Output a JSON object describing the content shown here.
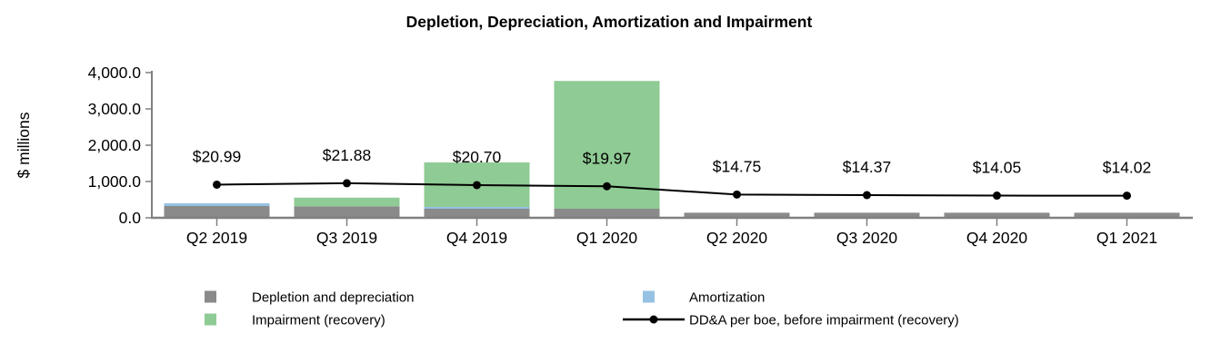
{
  "title": "Depletion, Depreciation, Amortization and Impairment",
  "chart_data": {
    "type": "bar",
    "subtype": "stacked-bar-with-line",
    "title": "Depletion, Depreciation, Amortization and Impairment",
    "xlabel": "",
    "ylabel": "$ millions",
    "ylim": [
      0,
      4000
    ],
    "grid": false,
    "legend_position": "bottom",
    "categories": [
      "Q2 2019",
      "Q3 2019",
      "Q4 2019",
      "Q1 2020",
      "Q2 2020",
      "Q3 2020",
      "Q4 2020",
      "Q1 2021"
    ],
    "yticks": [
      {
        "value": 0,
        "label": "0.0"
      },
      {
        "value": 1000,
        "label": "1,000.0"
      },
      {
        "value": 2000,
        "label": "2,000.0"
      },
      {
        "value": 3000,
        "label": "3,000.0"
      },
      {
        "value": 4000,
        "label": "4,000.0"
      }
    ],
    "series": [
      {
        "name": "Depletion and depreciation",
        "type": "bar",
        "color": "#8A8A8A",
        "values": [
          325,
          315,
          250,
          250,
          140,
          140,
          140,
          140
        ]
      },
      {
        "name": "Amortization",
        "type": "bar",
        "color": "#95C2E2",
        "values": [
          75,
          0,
          50,
          0,
          0,
          0,
          0,
          0
        ]
      },
      {
        "name": "Impairment (recovery)",
        "type": "bar",
        "color": "#8FCB94",
        "values": [
          0,
          240,
          1225,
          3520,
          0,
          0,
          0,
          0
        ]
      },
      {
        "name": "DD&A per boe, before impairment (recovery)",
        "type": "line",
        "color": "#000000",
        "values": [
          20.99,
          21.88,
          20.7,
          19.97,
          14.75,
          14.37,
          14.05,
          14.02
        ],
        "point_labels": [
          "$20.99",
          "$21.88",
          "$20.70",
          "$19.97",
          "$14.75",
          "$14.37",
          "$14.05",
          "$14.02"
        ]
      }
    ]
  }
}
